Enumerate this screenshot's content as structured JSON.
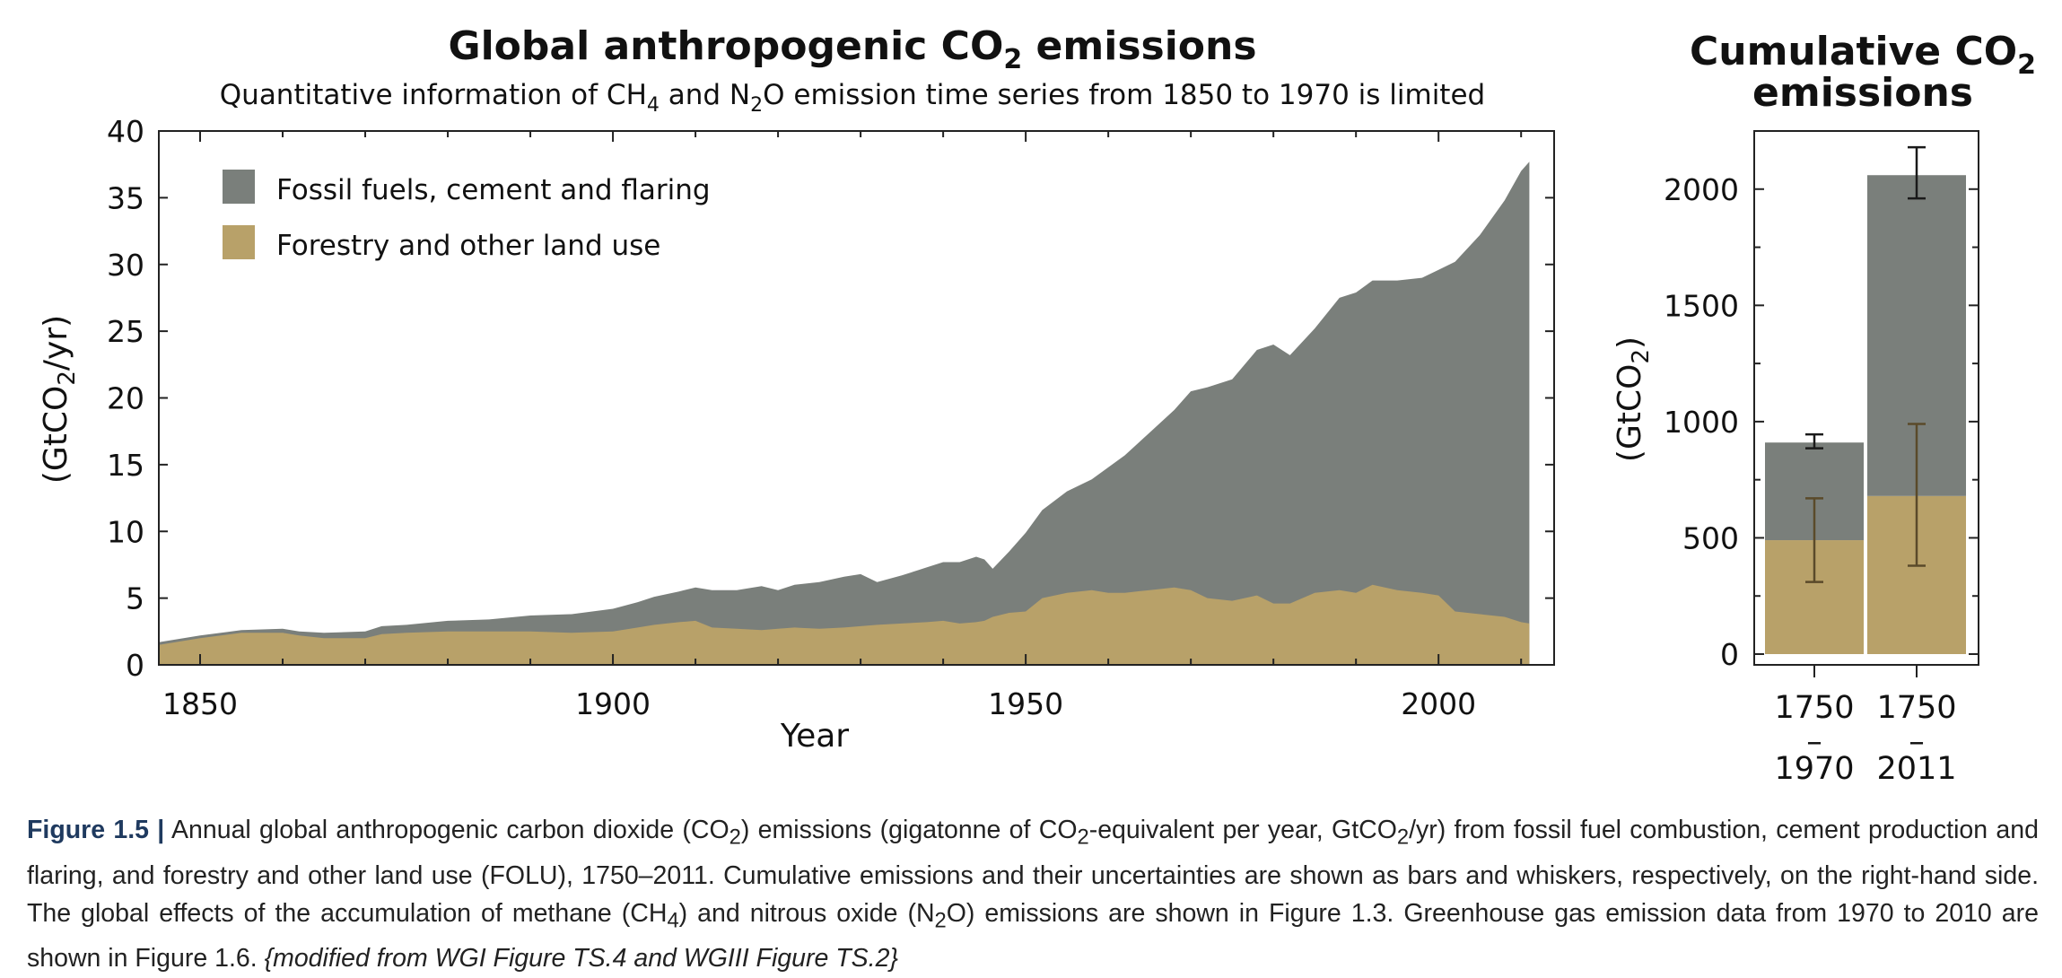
{
  "colors": {
    "fossil": "#7a7f7b",
    "folu": "#b8a169",
    "axis": "#222222",
    "whisker_fossil": "#1a1a1a",
    "whisker_folu": "#5a4a2a",
    "caption_label": "#1f3a5f"
  },
  "chart_data": [
    {
      "type": "area",
      "title": "Global anthropogenic CO",
      "title_sub": "2",
      "title_rest": " emissions",
      "subtitle": "Quantitative information of CH4 and N2O emission time series from 1850 to 1970 is limited",
      "subtitle_parts": [
        "Quantitative information of CH",
        "4",
        " and N",
        "2",
        "O emission time series from 1850 to 1970 is limited"
      ],
      "xlabel": "Year",
      "ylabel": "(GtCO2/yr)",
      "ylabel_parts": [
        "(GtCO",
        "2",
        "/yr)"
      ],
      "xlim": [
        1845,
        2014
      ],
      "ylim": [
        0,
        40
      ],
      "xticks": [
        1850,
        1900,
        1950,
        2000
      ],
      "yticks": [
        0,
        5,
        10,
        15,
        20,
        25,
        30,
        35,
        40
      ],
      "stacked": true,
      "legend_position": "top-left",
      "x": [
        1845,
        1850,
        1855,
        1860,
        1862,
        1865,
        1870,
        1872,
        1875,
        1880,
        1885,
        1890,
        1895,
        1900,
        1903,
        1905,
        1908,
        1910,
        1912,
        1915,
        1918,
        1920,
        1922,
        1925,
        1928,
        1930,
        1932,
        1935,
        1938,
        1940,
        1942,
        1944,
        1945,
        1946,
        1948,
        1950,
        1952,
        1955,
        1958,
        1960,
        1962,
        1965,
        1968,
        1970,
        1972,
        1975,
        1978,
        1980,
        1982,
        1985,
        1988,
        1990,
        1992,
        1995,
        1998,
        2000,
        2002,
        2005,
        2008,
        2010,
        2011
      ],
      "series": [
        {
          "name": "Fossil fuels, cement and flaring",
          "values": [
            0.2,
            0.2,
            0.2,
            0.3,
            0.3,
            0.4,
            0.5,
            0.6,
            0.6,
            0.8,
            0.9,
            1.2,
            1.4,
            1.7,
            1.9,
            2.1,
            2.3,
            2.5,
            2.8,
            2.9,
            3.3,
            2.9,
            3.2,
            3.5,
            3.8,
            3.9,
            3.2,
            3.6,
            4.1,
            4.4,
            4.6,
            4.9,
            4.6,
            3.6,
            4.6,
            5.9,
            6.6,
            7.6,
            8.3,
            9.4,
            10.3,
            11.8,
            13.3,
            14.9,
            15.8,
            16.6,
            18.4,
            19.4,
            18.6,
            19.8,
            21.9,
            22.5,
            22.8,
            23.2,
            23.6,
            24.4,
            26.2,
            28.4,
            31.2,
            33.8,
            34.6
          ],
          "legend": "Fossil fuels, cement and flaring"
        },
        {
          "name": "Forestry and other land use",
          "values": [
            1.5,
            2.0,
            2.4,
            2.4,
            2.2,
            2.0,
            2.0,
            2.3,
            2.4,
            2.5,
            2.5,
            2.5,
            2.4,
            2.5,
            2.8,
            3.0,
            3.2,
            3.3,
            2.8,
            2.7,
            2.6,
            2.7,
            2.8,
            2.7,
            2.8,
            2.9,
            3.0,
            3.1,
            3.2,
            3.3,
            3.1,
            3.2,
            3.3,
            3.6,
            3.9,
            4.0,
            5.0,
            5.4,
            5.6,
            5.4,
            5.4,
            5.6,
            5.8,
            5.6,
            5.0,
            4.8,
            5.2,
            4.6,
            4.6,
            5.4,
            5.6,
            5.4,
            6.0,
            5.6,
            5.4,
            5.2,
            4.0,
            3.8,
            3.6,
            3.2,
            3.1
          ],
          "legend": "Forestry and other land use"
        }
      ]
    },
    {
      "type": "bar",
      "title": "Cumulative CO",
      "title_sub": "2",
      "title_line2": "emissions",
      "ylabel": "(GtCO2)",
      "ylabel_parts": [
        "(GtCO",
        "2",
        ")"
      ],
      "ylim": [
        0,
        2250
      ],
      "yticks": [
        0,
        500,
        1000,
        1500,
        2000
      ],
      "stacked": true,
      "categories": [
        {
          "top": "1750",
          "dash": "–",
          "bottom": "1970"
        },
        {
          "top": "1750",
          "dash": "–",
          "bottom": "2011"
        }
      ],
      "series": [
        {
          "name": "Forestry and other land use",
          "values": [
            490,
            680
          ],
          "error_low": [
            310,
            380
          ],
          "error_high": [
            670,
            990
          ]
        },
        {
          "name": "Fossil fuels, cement and flaring",
          "values": [
            420,
            1380
          ]
        }
      ],
      "total_error_low": [
        885,
        1960
      ],
      "total_error_high": [
        945,
        2180
      ]
    }
  ],
  "caption": {
    "label": "Figure 1.5 |",
    "parts": [
      " Annual global anthropogenic carbon dioxide (CO",
      "2",
      ") emissions (gigatonne of CO",
      "2",
      "-equivalent per year, GtCO",
      "2",
      "/yr) from fossil fuel combustion, cement production and flaring, and forestry and other land use (FOLU), 1750–2011. Cumulative emissions and their uncertainties are shown as bars and whiskers, respectively, on the right-hand side. The global effects of the accumulation of methane (CH",
      "4",
      ") and nitrous oxide (N",
      "2",
      "O) emissions are shown in Figure 1.3. Greenhouse gas emission data from 1970 to 2010 are shown in Figure 1.6. "
    ],
    "source": "{modified from WGI Figure TS.4 and WGIII Figure TS.2}"
  }
}
